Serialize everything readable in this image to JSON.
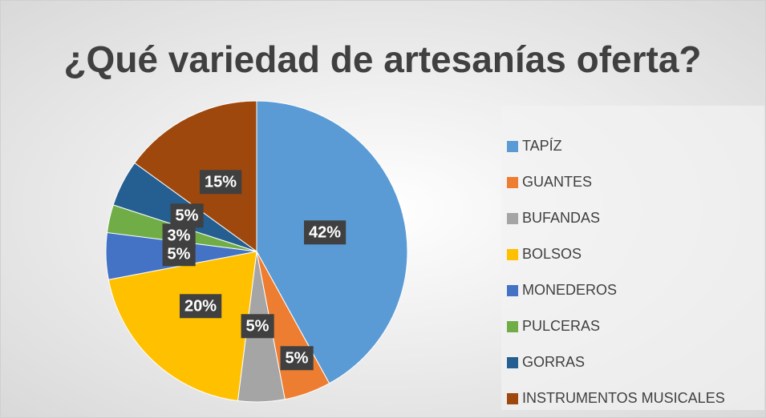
{
  "chart_data": {
    "type": "pie",
    "title": "¿Qué variedad de artesanías oferta?",
    "categories": [
      "TAPÍZ",
      "GUANTES",
      "BUFANDAS",
      "BOLSOS",
      "MONEDEROS",
      "PULCERAS",
      "GORRAS",
      "INSTRUMENTOS MUSICALES"
    ],
    "values": [
      42,
      5,
      5,
      20,
      5,
      3,
      5,
      15
    ],
    "value_labels": [
      "42%",
      "5%",
      "5%",
      "20%",
      "5%",
      "3%",
      "5%",
      "15%"
    ],
    "colors": [
      "#5b9bd5",
      "#ed7d31",
      "#a5a5a5",
      "#ffc000",
      "#4472c4",
      "#70ad47",
      "#255e91",
      "#9e480e"
    ],
    "legend": "right"
  }
}
